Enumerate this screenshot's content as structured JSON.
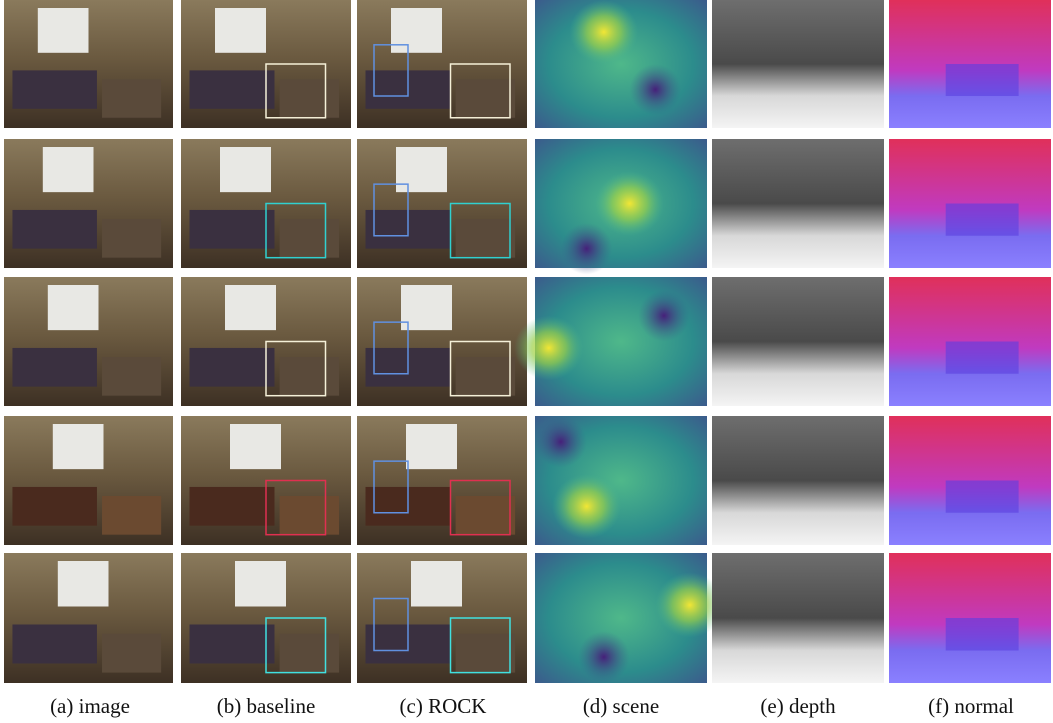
{
  "captions": [
    "(a) image",
    "(b) baseline",
    "(c) ROCK",
    "(d) scene",
    "(e) depth",
    "(f) normal"
  ]
}
